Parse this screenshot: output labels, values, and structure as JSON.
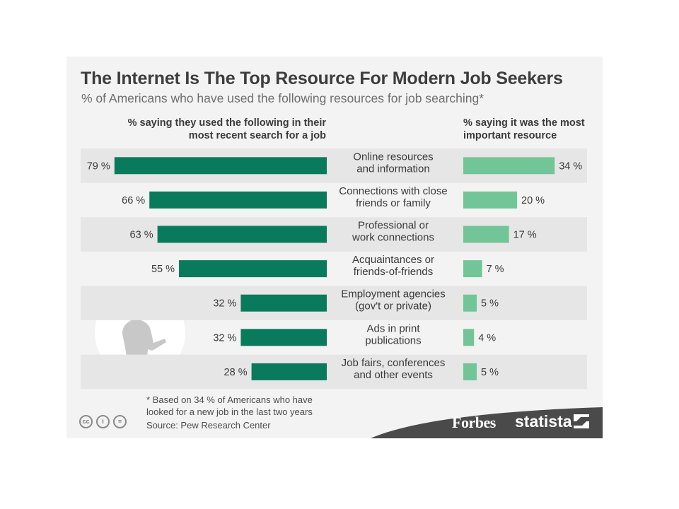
{
  "title": "The Internet Is The Top Resource For Modern Job Seekers",
  "subtitle": "% of Americans who have used the following resources for job searching*",
  "left_header_line1": "% saying they used the following in their",
  "left_header_line2": "most recent search for a job",
  "right_header_line1": "% saying it was the most",
  "right_header_line2": "important resource",
  "footnote_line1": "* Based on 34 % of Americans who have",
  "footnote_line2": "looked for a new job in the last two years",
  "source": "Source: Pew Research Center",
  "brand_forbes": "Forbes",
  "brand_statista": "statista",
  "icons": [
    "cc-icon",
    "attribution-icon",
    "no-derivatives-icon"
  ],
  "colors": {
    "left_bar": "#0a7a5c",
    "right_bar": "#72c597",
    "stripe": "#e6e6e6",
    "footer_band": "#4a4a4a"
  },
  "chart_data": {
    "type": "bar",
    "categories": [
      [
        "Online resources",
        "and information"
      ],
      [
        "Connections with close",
        "friends or family"
      ],
      [
        "Professional or",
        "work connections"
      ],
      [
        "Acquaintances or",
        "friends-of-friends"
      ],
      [
        "Employment agencies",
        "(gov't or private)"
      ],
      [
        "Ads in print",
        "publications"
      ],
      [
        "Job fairs, conferences",
        "and other events"
      ]
    ],
    "series": [
      {
        "values": [
          79,
          66,
          63,
          55,
          32,
          32,
          28
        ]
      },
      {
        "values": [
          34,
          20,
          17,
          7,
          5,
          4,
          5
        ]
      }
    ],
    "value_suffix": " %"
  }
}
